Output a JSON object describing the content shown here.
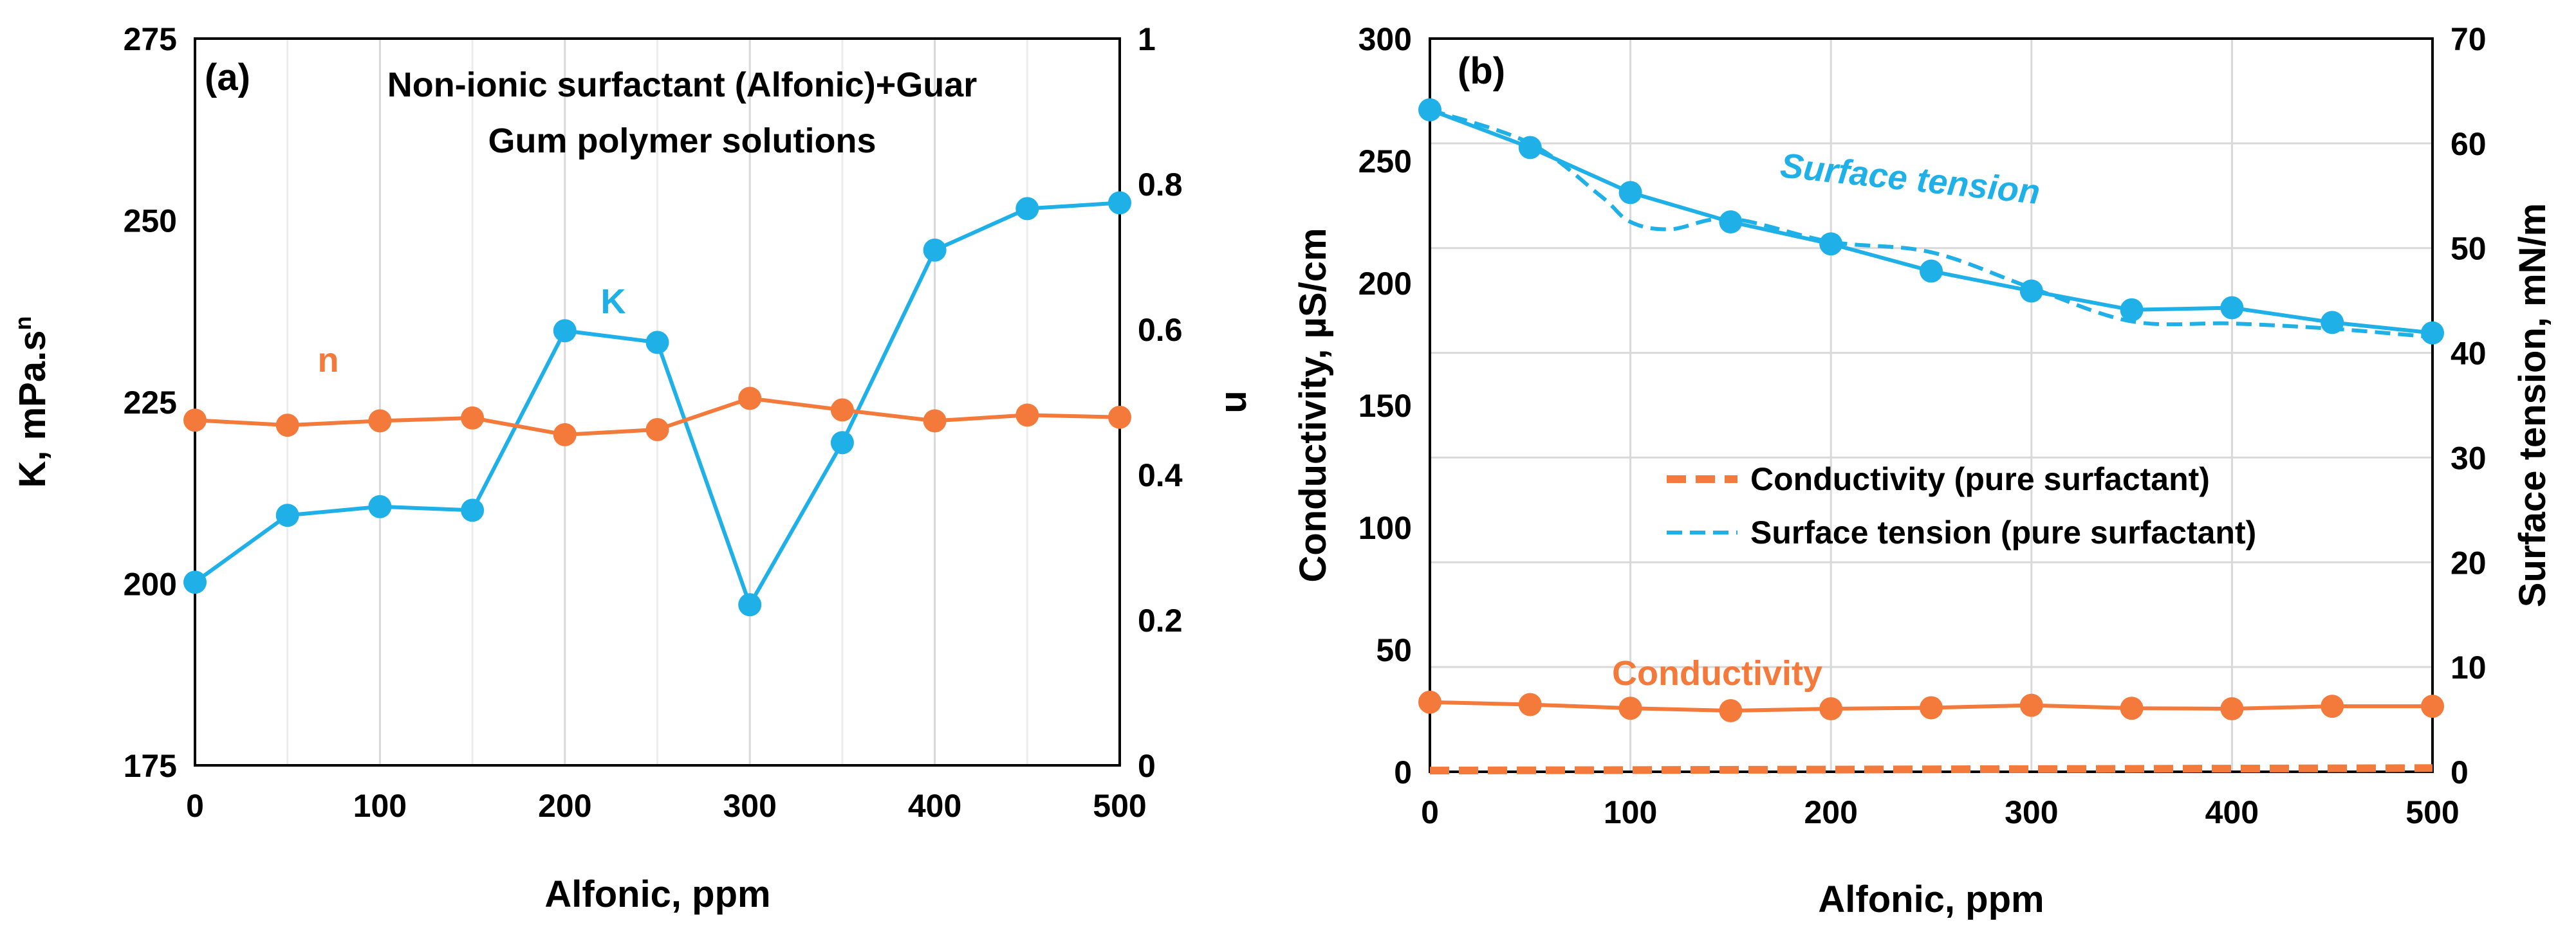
{
  "colors": {
    "blue": "#1fb0e8",
    "orange": "#f37a3a"
  },
  "chart_data": [
    {
      "type": "line",
      "panel": "(a)",
      "title_lines": [
        "Non-ionic surfactant (Alfonic)+Guar",
        "Gum polymer solutions"
      ],
      "xlabel": "Alfonic, ppm",
      "ylabel": "K, mPa.s",
      "ylabel_sup": "n",
      "y2label": "n",
      "xlim": [
        0,
        500
      ],
      "ylim": [
        175,
        275
      ],
      "y2lim": [
        0,
        1
      ],
      "xticks": [
        0,
        100,
        200,
        300,
        400,
        500
      ],
      "yticks": [
        175,
        200,
        225,
        250,
        275
      ],
      "y2ticks": [
        0,
        0.2,
        0.4,
        0.6,
        0.8,
        1
      ],
      "x": [
        0,
        50,
        100,
        150,
        200,
        250,
        300,
        350,
        400,
        450,
        500
      ],
      "series": [
        {
          "name": "K",
          "axis": "left",
          "color": "#1fb0e8",
          "values": [
            200.2,
            209.4,
            210.6,
            210.1,
            234.8,
            233.2,
            197.1,
            219.4,
            245.9,
            251.6,
            252.4
          ]
        },
        {
          "name": "n",
          "axis": "right",
          "color": "#f37a3a",
          "values": [
            0.475,
            0.468,
            0.474,
            0.478,
            0.455,
            0.462,
            0.505,
            0.489,
            0.474,
            0.482,
            0.479
          ]
        }
      ],
      "annotations": [
        "K",
        "n"
      ]
    },
    {
      "type": "line",
      "panel": "(b)",
      "xlabel": "Alfonic, ppm",
      "ylabel": "Conductivity, µS/cm",
      "y2label": "Surface tension, mN/m",
      "xlim": [
        0,
        500
      ],
      "ylim": [
        0,
        300
      ],
      "y2lim": [
        0,
        70
      ],
      "xticks": [
        0,
        100,
        200,
        300,
        400,
        500
      ],
      "yticks": [
        0,
        50,
        100,
        150,
        200,
        250,
        300
      ],
      "y2ticks": [
        0,
        10,
        20,
        30,
        40,
        50,
        60,
        70
      ],
      "x": [
        0,
        50,
        100,
        150,
        200,
        250,
        300,
        350,
        400,
        450,
        500
      ],
      "series": [
        {
          "name": "Surface tension",
          "axis": "right",
          "color": "#1fb0e8",
          "markers": true,
          "dashed": false,
          "values": [
            63.2,
            59.6,
            55.3,
            52.5,
            50.4,
            47.8,
            45.9,
            44.1,
            44.3,
            42.9,
            41.9
          ]
        },
        {
          "name": "Surface tension (pure surfactant)",
          "axis": "right",
          "color": "#1fb0e8",
          "markers": false,
          "dashed": true,
          "x": [
            0,
            50,
            85,
            100,
            120,
            150,
            200,
            250,
            300,
            350,
            400,
            450,
            500
          ],
          "values": [
            63.2,
            60.0,
            55.0,
            52.5,
            51.8,
            52.8,
            50.6,
            49.6,
            46.2,
            43.0,
            42.8,
            42.3,
            41.5
          ]
        },
        {
          "name": "Conductivity",
          "axis": "left",
          "color": "#f37a3a",
          "markers": true,
          "dashed": false,
          "values": [
            28.5,
            27.5,
            26.0,
            25.0,
            25.8,
            26.2,
            27.2,
            26.0,
            25.8,
            26.8,
            26.8
          ]
        },
        {
          "name": "Conductivity (pure surfactant)",
          "axis": "left",
          "color": "#f37a3a",
          "markers": false,
          "dashed": true,
          "values": [
            0.5,
            0.6,
            0.7,
            0.8,
            0.9,
            1.0,
            1.1,
            1.2,
            1.3,
            1.4,
            1.5
          ]
        }
      ],
      "legend": [
        "Conductivity (pure surfactant)",
        "Surface tension (pure surfactant)"
      ],
      "annotations": [
        "Surface tension",
        "Conductivity"
      ]
    }
  ]
}
